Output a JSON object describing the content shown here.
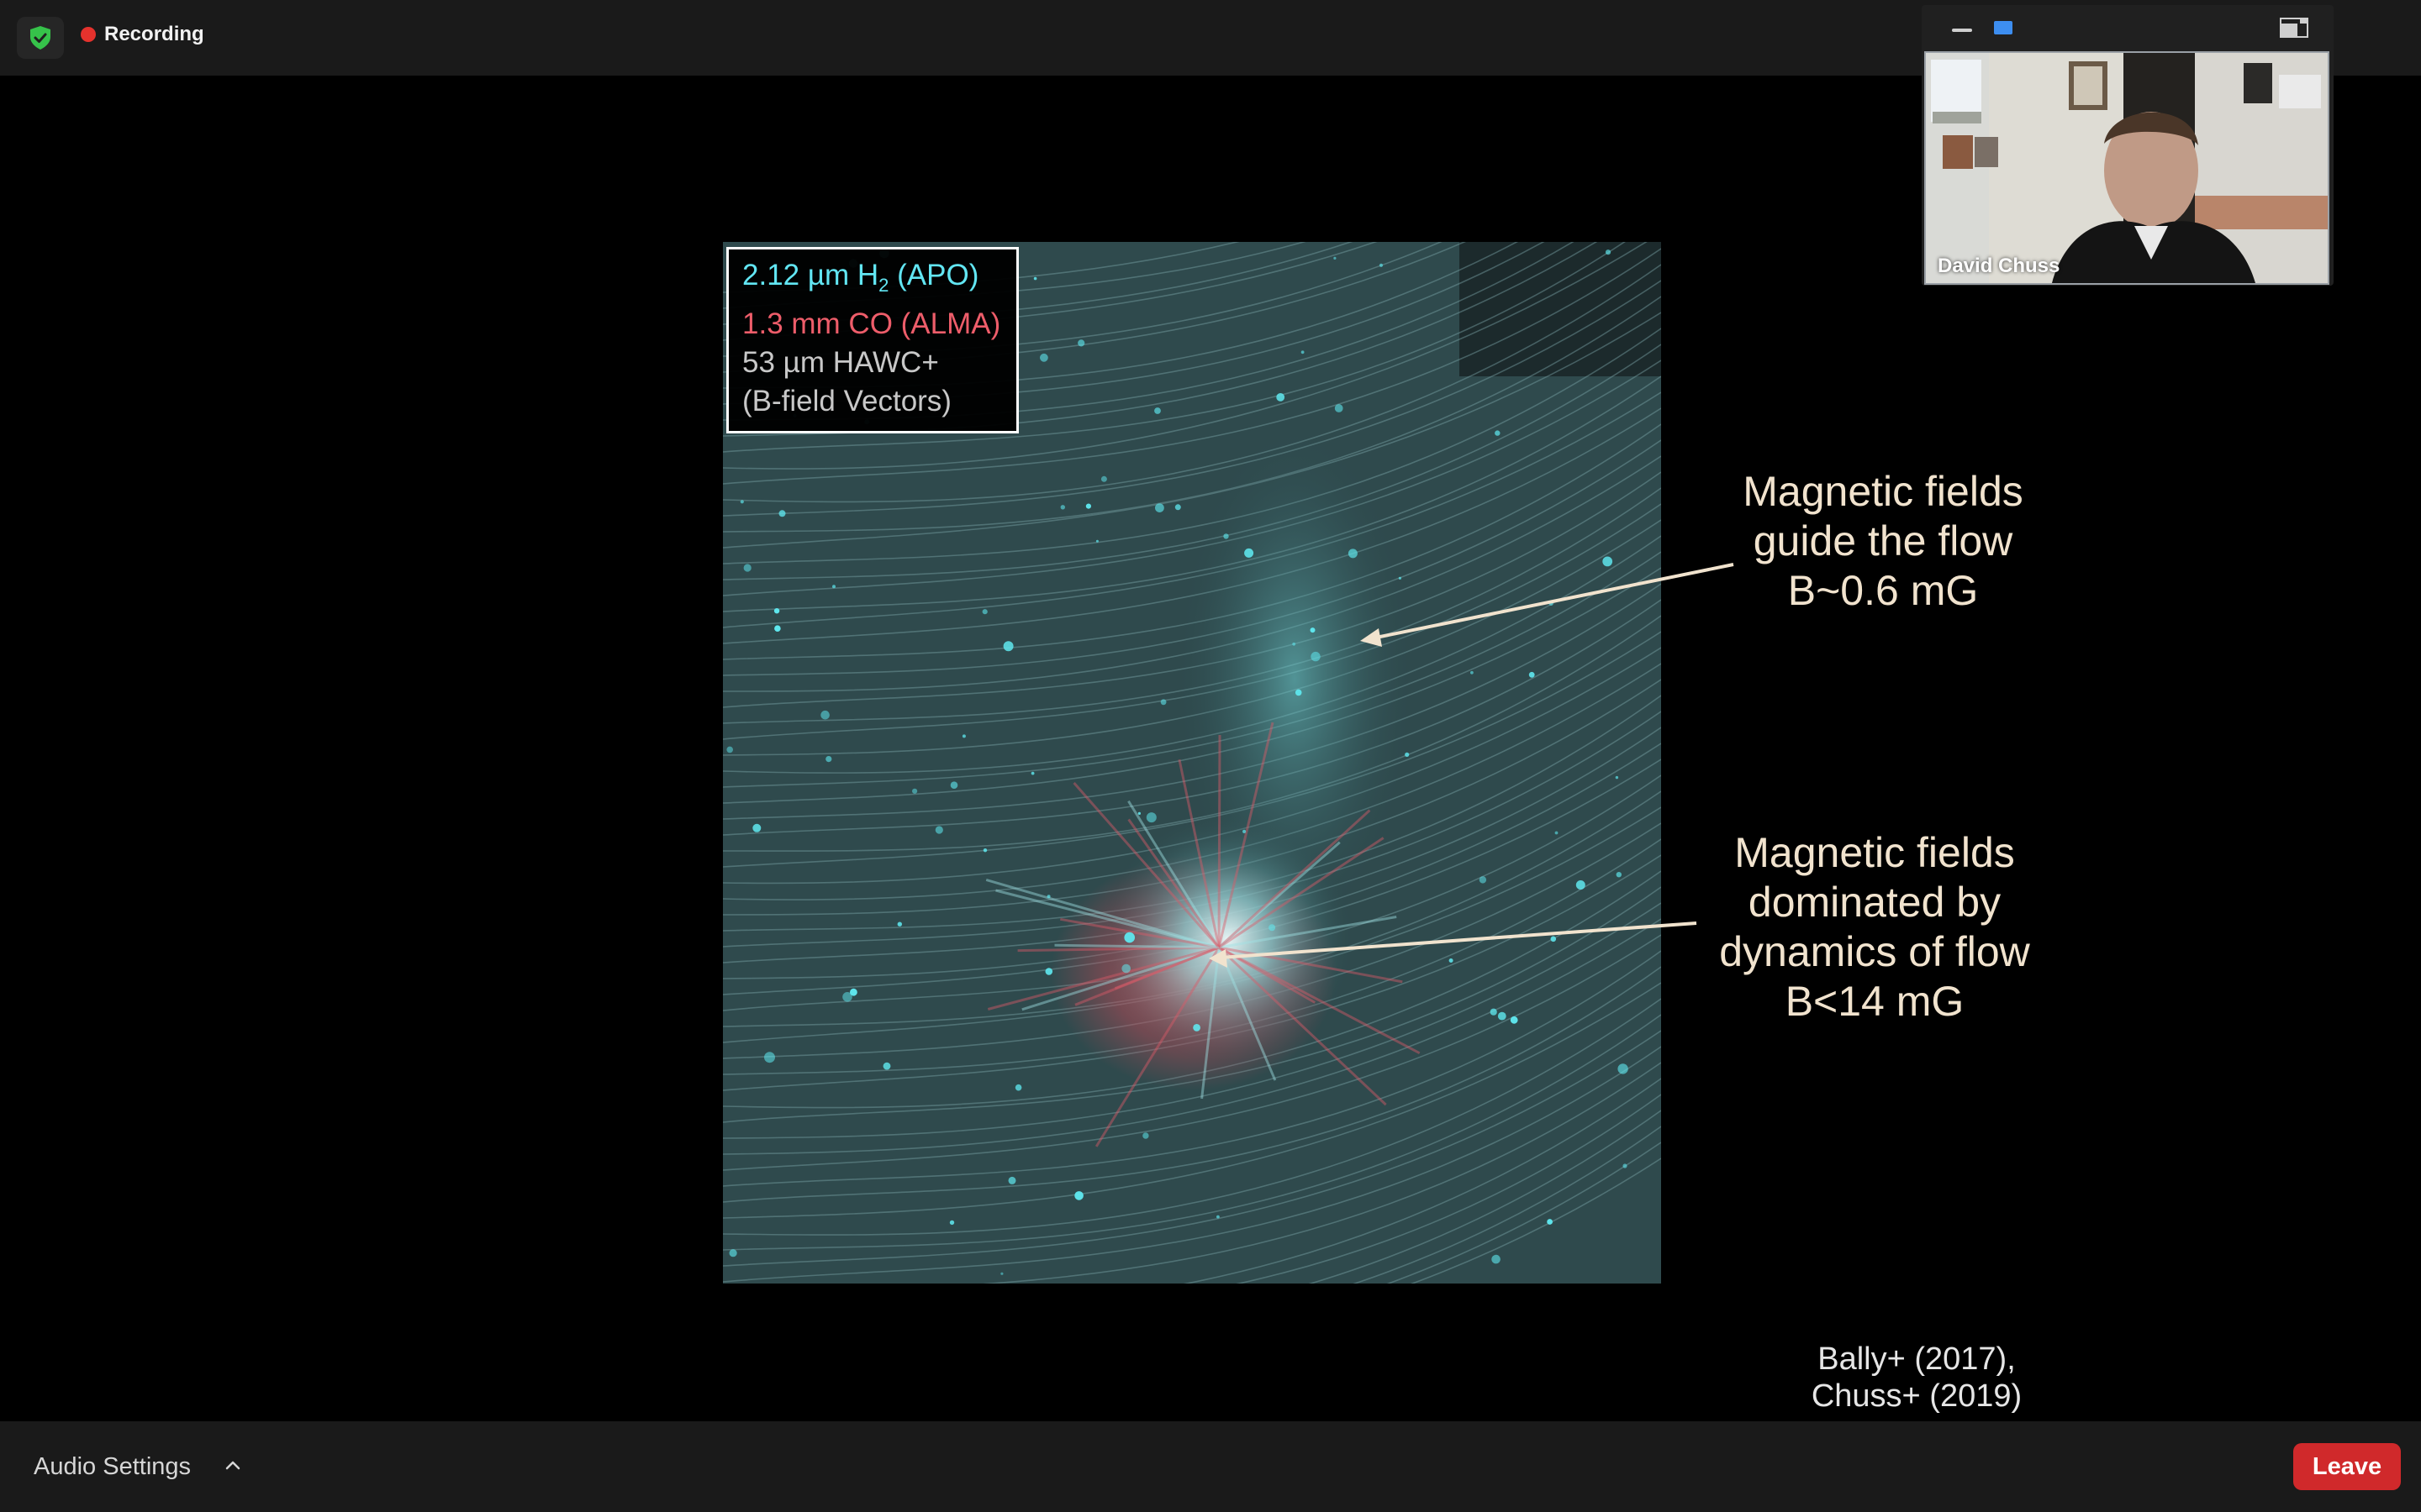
{
  "topbar": {
    "security_icon": "shield-check-icon",
    "recording_label": "Recording",
    "recording_color": "#e5322d"
  },
  "video_panel": {
    "participant_name": "David Chuss",
    "icons": [
      "minimize-icon",
      "video-view-icon",
      "layout-icon"
    ]
  },
  "slide": {
    "legend": {
      "h2_prefix": "2.12 µm H",
      "h2_subscript": "2",
      "h2_suffix": " (APO)",
      "co": "1.3 mm CO (ALMA)",
      "hawc": "53 µm HAWC+",
      "bfield": "(B-field Vectors)"
    },
    "annotation_1": [
      "Magnetic fields",
      "guide the flow",
      "B~0.6 mG"
    ],
    "annotation_2": [
      "Magnetic fields",
      "dominated by",
      "dynamics of flow",
      "B<14 mG"
    ],
    "citation": [
      "Bally+ (2017),",
      "Chuss+ (2019)"
    ],
    "colors": {
      "h2": "#62e6f3",
      "co": "#ee5d6a",
      "annotation": "#f1e3ce"
    }
  },
  "bottombar": {
    "audio_settings": "Audio Settings",
    "leave": "Leave",
    "leave_color": "#d0292b"
  }
}
